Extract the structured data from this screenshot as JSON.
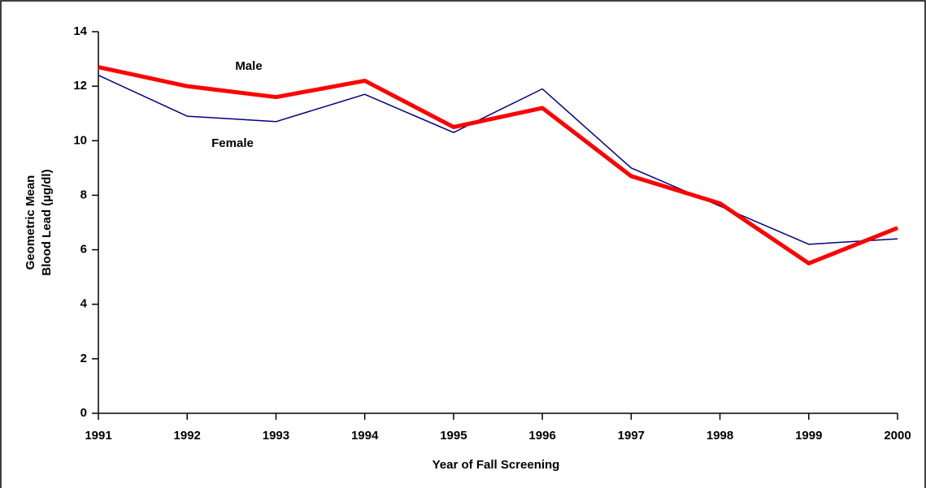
{
  "chart_data": {
    "type": "line",
    "x_label": "Year of Fall Screening",
    "y_label": [
      "Geometric Mean",
      "Blood Lead (µg/dl)"
    ],
    "x": [
      1991,
      1992,
      1993,
      1994,
      1995,
      1996,
      1997,
      1998,
      1999,
      2000
    ],
    "xlim": [
      1991,
      2000
    ],
    "xticks": [
      1991,
      1992,
      1993,
      1994,
      1995,
      1996,
      1997,
      1998,
      1999,
      2000
    ],
    "ylim": [
      0,
      14
    ],
    "yticks": [
      0,
      2,
      4,
      6,
      8,
      10,
      12,
      14
    ],
    "grid": false,
    "series": [
      {
        "name": "Female",
        "color": "#000080",
        "values": [
          12.4,
          10.9,
          10.7,
          11.7,
          10.3,
          11.9,
          9.0,
          7.6,
          6.2,
          6.4
        ]
      },
      {
        "name": "Male",
        "color": "#ff0000",
        "values": [
          12.7,
          12.0,
          11.6,
          12.2,
          10.5,
          11.2,
          8.7,
          7.7,
          5.5,
          6.8
        ]
      }
    ]
  }
}
